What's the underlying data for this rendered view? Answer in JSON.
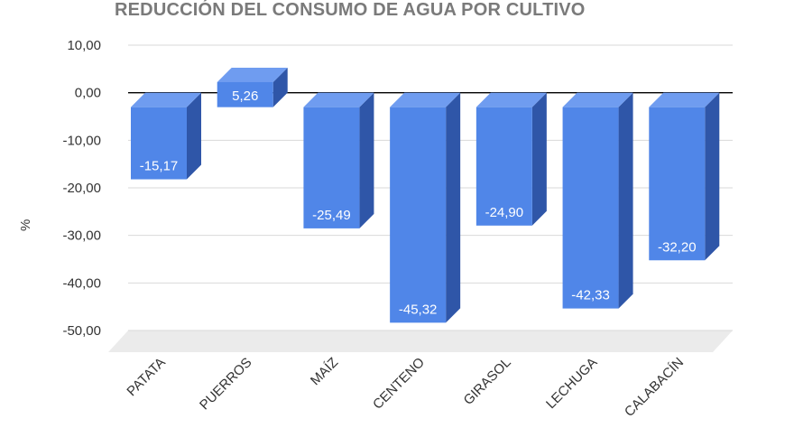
{
  "chart_data": {
    "type": "bar",
    "title": "REDUCCIÓN DEL CONSUMO DE AGUA POR CULTIVO",
    "xlabel": "",
    "ylabel": "%",
    "ylim": [
      -50,
      10
    ],
    "ytick_labels": [
      "10,00",
      "0,00",
      "-10,00",
      "-20,00",
      "-30,00",
      "-40,00",
      "-50,00"
    ],
    "categories": [
      "PATATA",
      "PUERROS",
      "MAÍZ",
      "CENTENO",
      "GIRASOL",
      "LECHUGA",
      "CALABACÍN"
    ],
    "values": [
      -15.17,
      5.26,
      -25.49,
      -45.32,
      -24.9,
      -42.33,
      -32.2
    ],
    "data_labels": [
      "-15,17",
      "5,26",
      "-25,49",
      "-45,32",
      "-24,90",
      "-42,33",
      "-32,20"
    ],
    "grid": true,
    "legend": "none",
    "style": "3d",
    "colors": {
      "bar_front": "#5086e8",
      "bar_side": "#2f56a8",
      "bar_top": "#6f9cf0",
      "floor": "#ebebeb",
      "grid": "#d9d9d9",
      "zero_line": "#000000"
    }
  }
}
